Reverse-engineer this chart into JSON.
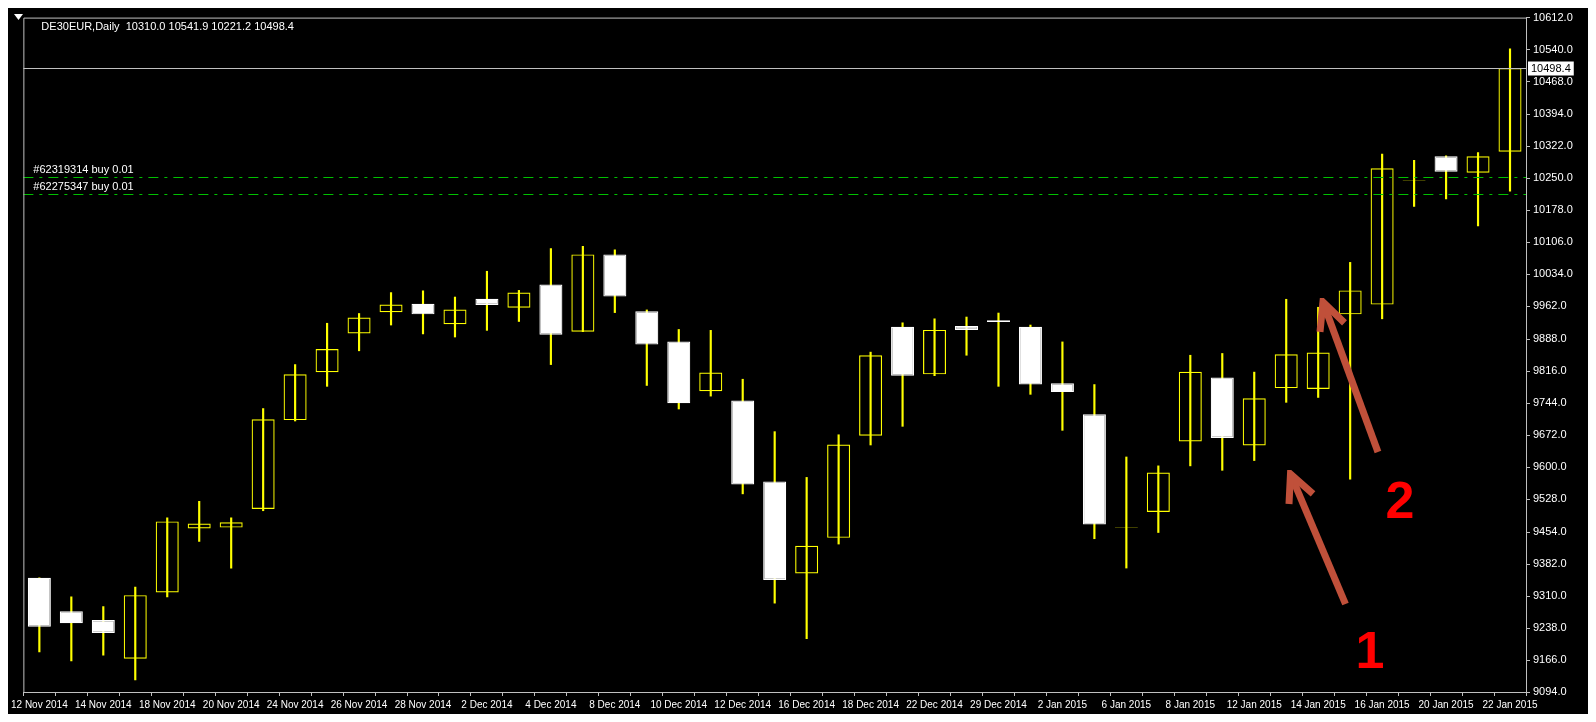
{
  "chart_data": {
    "type": "candlestick",
    "title": "DE30EUR,Daily  10310.0 10541.9 10221.2 10498.4",
    "categories": [
      "12 Nov 2014",
      null,
      "14 Nov 2014",
      null,
      "18 Nov 2014",
      null,
      "20 Nov 2014",
      null,
      "24 Nov 2014",
      null,
      "26 Nov 2014",
      null,
      "28 Nov 2014",
      null,
      "2 Dec 2014",
      null,
      "4 Dec 2014",
      null,
      "8 Dec 2014",
      null,
      "10 Dec 2014",
      null,
      "12 Dec 2014",
      null,
      "16 Dec 2014",
      null,
      "18 Dec 2014",
      null,
      "22 Dec 2014",
      null,
      "29 Dec 2014",
      null,
      "2 Jan 2015",
      null,
      "6 Jan 2015",
      null,
      "8 Jan 2015",
      null,
      "12 Jan 2015",
      null,
      "14 Jan 2015",
      null,
      "16 Jan 2015",
      null,
      "20 Jan 2015",
      null,
      "22 Jan 2015"
    ],
    "ohlc": [
      [
        9351,
        9351,
        9184,
        9241
      ],
      [
        9276,
        9308,
        9164,
        9249
      ],
      [
        9256,
        9286,
        9177,
        9227
      ],
      [
        9169,
        9330,
        9121,
        9312
      ],
      [
        9318,
        9486,
        9308,
        9478
      ],
      [
        9462,
        9523,
        9433,
        9473
      ],
      [
        9464,
        9486,
        9373,
        9476
      ],
      [
        9506,
        9732,
        9502,
        9708
      ],
      [
        9706,
        9831,
        9704,
        9809
      ],
      [
        9814,
        9924,
        9782,
        9866
      ],
      [
        9901,
        9946,
        9862,
        9937
      ],
      [
        9949,
        9993,
        9920,
        9966
      ],
      [
        9968,
        9997,
        9900,
        9944
      ],
      [
        9922,
        9983,
        9893,
        9955
      ],
      [
        9979,
        10041,
        9908,
        9965
      ],
      [
        9959,
        9998,
        9928,
        9993
      ],
      [
        10011,
        10092,
        9831,
        9898
      ],
      [
        9905,
        10097,
        9905,
        10079
      ],
      [
        10079,
        10089,
        9948,
        9984
      ],
      [
        9951,
        9954,
        9784,
        9876
      ],
      [
        9883,
        9910,
        9731,
        9744
      ],
      [
        9771,
        9908,
        9760,
        9813
      ],
      [
        9750,
        9798,
        9540,
        9561
      ],
      [
        9568,
        9680,
        9294,
        9346
      ],
      [
        9361,
        9577,
        9214,
        9423
      ],
      [
        9441,
        9673,
        9427,
        9651
      ],
      [
        9671,
        9859,
        9650,
        9852
      ],
      [
        9916,
        9925,
        9692,
        9806
      ],
      [
        9809,
        9934,
        9806,
        9909
      ],
      [
        9918,
        9938,
        9852,
        9909
      ],
      [
        9931,
        9947,
        9782,
        9927
      ],
      [
        9916,
        9920,
        9764,
        9786
      ],
      [
        9789,
        9882,
        9683,
        9769
      ],
      [
        9719,
        9786,
        9439,
        9471
      ],
      [
        9463,
        9623,
        9373,
        9464
      ],
      [
        9499,
        9603,
        9453,
        9588
      ],
      [
        9658,
        9852,
        9603,
        9815
      ],
      [
        9802,
        9856,
        9593,
        9666
      ],
      [
        9649,
        9814,
        9615,
        9755
      ],
      [
        9778,
        9978,
        9746,
        9854
      ],
      [
        9776,
        9960,
        9757,
        9858
      ],
      [
        9944,
        10061,
        9573,
        9998
      ],
      [
        9966,
        10305,
        9934,
        10273
      ],
      [
        10245,
        10291,
        10187,
        10246
      ],
      [
        10300,
        10301,
        10204,
        10265
      ],
      [
        10263,
        10308,
        10143,
        10300
      ],
      [
        10310.0,
        10541.9,
        10221.2,
        10498.4
      ]
    ],
    "color": "#ffff00",
    "colors": [
      "#ffffff",
      "#ffffff",
      "#ffffff",
      "#ffff00",
      "#ffff00",
      "#ffff00",
      "#ffff00",
      "#ffff00",
      "#ffff00",
      "#ffff00",
      "#ffff00",
      "#ffff00",
      "#ffffff",
      "#ffff00",
      "#ffffff",
      "#ffff00",
      "#ffffff",
      "#ffff00",
      "#ffffff",
      "#ffffff",
      "#ffffff",
      "#ffff00",
      "#ffffff",
      "#ffffff",
      "#ffff00",
      "#ffff00",
      "#ffff00",
      "#ffffff",
      "#ffff00",
      "#ffffff",
      "#ffffff",
      "#ffffff",
      "#ffffff",
      "#ffffff",
      "#ffff00",
      "#ffff00",
      "#ffff00",
      "#ffffff",
      "#ffff00",
      "#ffff00",
      "#ffff00",
      "#ffff00",
      "#ffff00",
      "#ffff00",
      "#ffffff",
      "#ffff00",
      "#ffff00"
    ],
    "ylim": [
      9094,
      10612
    ],
    "yticks": [
      {
        "value": 9094,
        "label": "9094.0"
      },
      {
        "value": 9166,
        "label": "9166.0"
      },
      {
        "value": 9238,
        "label": "9238.0"
      },
      {
        "value": 9310,
        "label": "9310.0"
      },
      {
        "value": 9382,
        "label": "9382.0"
      },
      {
        "value": 9454,
        "label": "9454.0"
      },
      {
        "value": 9528,
        "label": "9528.0"
      },
      {
        "value": 9600,
        "label": "9600.0"
      },
      {
        "value": 9672,
        "label": "9672.0"
      },
      {
        "value": 9744,
        "label": "9744.0"
      },
      {
        "value": 9816,
        "label": "9816.0"
      },
      {
        "value": 9888,
        "label": "9888.0"
      },
      {
        "value": 9962,
        "label": "9962.0"
      },
      {
        "value": 10034,
        "label": "10034.0"
      },
      {
        "value": 10106,
        "label": "10106.0"
      },
      {
        "value": 10178,
        "label": "10178.0"
      },
      {
        "value": 10250,
        "label": "10250.0"
      },
      {
        "value": 10322,
        "label": "10322.0"
      },
      {
        "value": 10394,
        "label": "10394.0"
      },
      {
        "value": 10468,
        "label": "10468.0"
      },
      {
        "value": 10540,
        "label": "10540.0"
      },
      {
        "value": 10612,
        "label": "10612.0"
      }
    ],
    "ref_lines": [
      {
        "axis": "y",
        "value": 10253,
        "label": "#62319314 buy 0.01",
        "color": "#00c000",
        "line_style": "dashed"
      },
      {
        "axis": "y",
        "value": 10214,
        "label": "#62275347 buy 0.01",
        "color": "#00c000",
        "line_style": "dashed"
      },
      {
        "axis": "y",
        "value": 10498.4,
        "label": "10498.4",
        "color": "#c0c0c0",
        "line_style": "solid"
      }
    ],
    "annotations": [
      "1",
      "2"
    ],
    "grid": false,
    "legend": false
  }
}
